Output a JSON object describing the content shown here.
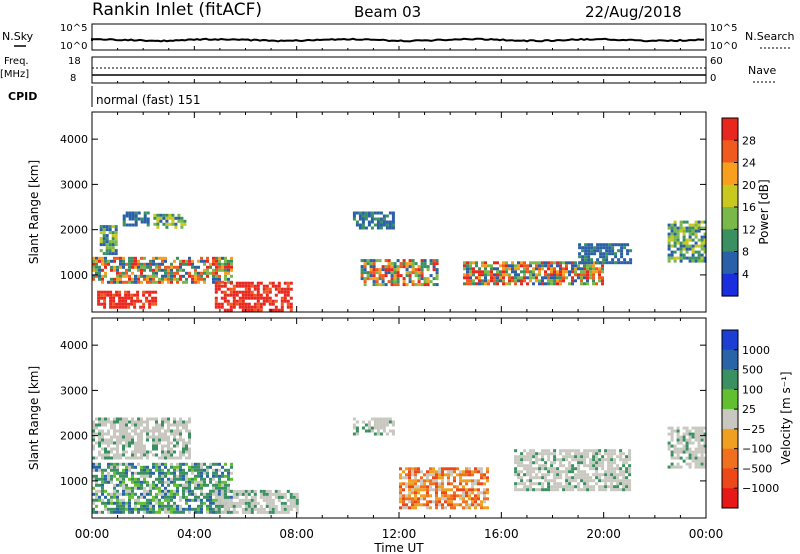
{
  "header": {
    "station": "Rankin Inlet (fitACF)",
    "beam": "Beam 03",
    "date": "22/Aug/2018"
  },
  "strip_labels": {
    "nsky": "N.Sky",
    "nsearch": "N.Search",
    "freq": "Freq.",
    "freq_unit": "[MHz]",
    "nave": "Nave",
    "cpid": "CPID",
    "cpid_value": "normal (fast) 151",
    "nsky_ticks": [
      "10^5",
      "10^0"
    ],
    "nsearch_ticks": [
      "10^5",
      "10^0"
    ],
    "freq_ticks": [
      "18",
      "8"
    ],
    "nave_ticks": [
      "60",
      "0"
    ]
  },
  "colorbars": {
    "power": {
      "label": "Power [dB]",
      "ticks": [
        "28",
        "24",
        "20",
        "16",
        "12",
        "8",
        "4"
      ],
      "colors": [
        "#e8281e",
        "#f05a1e",
        "#f8a01e",
        "#c8c81e",
        "#7ab84a",
        "#3a9060",
        "#2a60a8",
        "#1a2ee0"
      ]
    },
    "velocity": {
      "label": "Velocity [m s⁻¹]",
      "ticks": [
        "1000",
        "500",
        "100",
        "25",
        "−25",
        "−100",
        "−500",
        "−1000"
      ],
      "colors": [
        "#1c3ed2",
        "#2a64a8",
        "#3a9060",
        "#62c030",
        "#c8c8c0",
        "#f0a020",
        "#f07020",
        "#ec4818",
        "#e81818"
      ]
    }
  },
  "chart_data": [
    {
      "type": "heatmap",
      "name": "power",
      "ylabel": "Slant Range [km]",
      "ylim": [
        180,
        4600
      ],
      "yticks": [
        1000,
        2000,
        3000,
        4000
      ],
      "xlim": [
        0,
        24
      ],
      "xticks": [
        "00:00",
        "04:00",
        "08:00",
        "12:00",
        "16:00",
        "20:00",
        "00:00"
      ],
      "color_scale": "Power [dB]",
      "regions": [
        {
          "t0": 0.3,
          "t1": 1.0,
          "r0": 1500,
          "r1": 2100,
          "value": "green"
        },
        {
          "t0": 1.2,
          "t1": 2.2,
          "r0": 2100,
          "r1": 2400,
          "value": "blue"
        },
        {
          "t0": 2.4,
          "t1": 3.6,
          "r0": 2050,
          "r1": 2350,
          "value": "green"
        },
        {
          "t0": 0.0,
          "t1": 5.5,
          "r0": 850,
          "r1": 1400,
          "value": "mixed"
        },
        {
          "t0": 0.2,
          "t1": 2.5,
          "r0": 300,
          "r1": 650,
          "value": "red"
        },
        {
          "t0": 4.8,
          "t1": 7.8,
          "r0": 250,
          "r1": 850,
          "value": "red"
        },
        {
          "t0": 10.2,
          "t1": 11.8,
          "r0": 2050,
          "r1": 2400,
          "value": "blue"
        },
        {
          "t0": 10.5,
          "t1": 13.5,
          "r0": 800,
          "r1": 1350,
          "value": "mixed"
        },
        {
          "t0": 14.5,
          "t1": 20.0,
          "r0": 800,
          "r1": 1300,
          "value": "mixed"
        },
        {
          "t0": 19.0,
          "t1": 21.0,
          "r0": 1300,
          "r1": 1700,
          "value": "blue"
        },
        {
          "t0": 22.5,
          "t1": 24.0,
          "r0": 1300,
          "r1": 2200,
          "value": "green"
        }
      ]
    },
    {
      "type": "heatmap",
      "name": "velocity",
      "ylabel": "Slant Range [km]",
      "xlabel": "Time UT",
      "ylim": [
        180,
        4600
      ],
      "yticks": [
        1000,
        2000,
        3000,
        4000
      ],
      "xlim": [
        0,
        24
      ],
      "xticks": [
        "00:00",
        "04:00",
        "08:00",
        "12:00",
        "16:00",
        "20:00",
        "00:00"
      ],
      "color_scale": "Velocity [m s⁻¹]",
      "regions": [
        {
          "t0": 0.0,
          "t1": 3.8,
          "r0": 1500,
          "r1": 2400,
          "value": "grey"
        },
        {
          "t0": 0.0,
          "t1": 5.5,
          "r0": 300,
          "r1": 1400,
          "value": "green"
        },
        {
          "t0": 4.8,
          "t1": 8.0,
          "r0": 300,
          "r1": 800,
          "value": "grey"
        },
        {
          "t0": 10.2,
          "t1": 11.8,
          "r0": 2050,
          "r1": 2400,
          "value": "grey"
        },
        {
          "t0": 12.0,
          "t1": 15.5,
          "r0": 400,
          "r1": 1300,
          "value": "orange"
        },
        {
          "t0": 16.5,
          "t1": 21.0,
          "r0": 800,
          "r1": 1700,
          "value": "grey"
        },
        {
          "t0": 22.5,
          "t1": 24.0,
          "r0": 1300,
          "r1": 2200,
          "value": "grey"
        }
      ]
    }
  ]
}
